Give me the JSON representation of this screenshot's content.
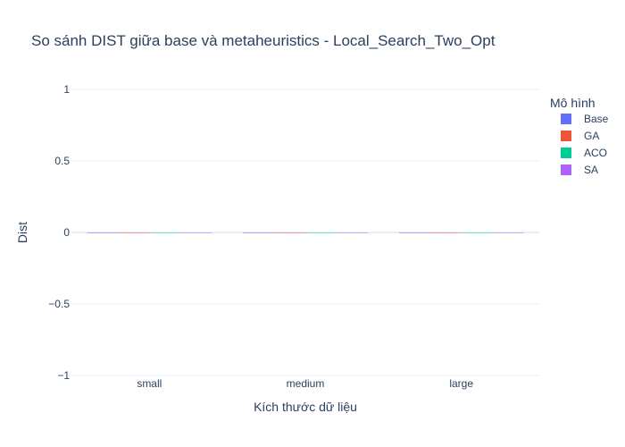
{
  "chart_data": {
    "type": "bar",
    "title": "So sánh DIST giữa base và metaheuristics - Local_Search_Two_Opt",
    "xlabel": "Kích thước dữ liệu",
    "ylabel": "Dist",
    "categories": [
      "small",
      "medium",
      "large"
    ],
    "ylim": [
      -1,
      1
    ],
    "yticks": [
      1,
      0.5,
      0,
      -0.5,
      -1
    ],
    "ytick_labels": [
      "1",
      "0.5",
      "0",
      "−0.5",
      "−1"
    ],
    "grid": true,
    "legend_title": "Mô hình",
    "legend_position": "top-right",
    "series": [
      {
        "name": "Base",
        "color": "#636efa",
        "values": [
          0,
          0,
          0
        ]
      },
      {
        "name": "GA",
        "color": "#ef553b",
        "values": [
          0,
          0,
          0
        ]
      },
      {
        "name": "ACO",
        "color": "#00cc96",
        "values": [
          0,
          0,
          0
        ]
      },
      {
        "name": "SA",
        "color": "#ab63fa",
        "values": [
          0,
          0,
          0
        ]
      }
    ]
  }
}
